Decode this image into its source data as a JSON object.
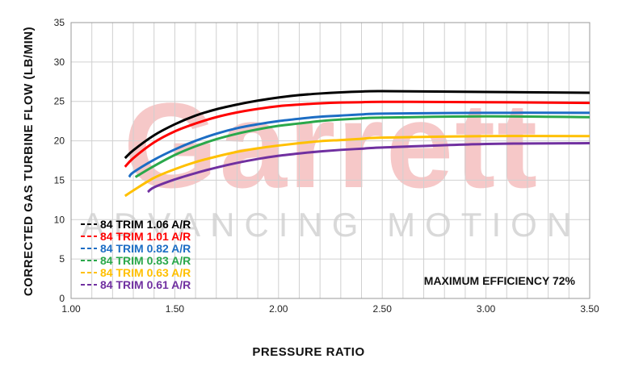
{
  "watermark": {
    "brand": "Garrett",
    "tagline": "ADVANCING MOTION",
    "brand_color": "#f5c4c4",
    "tagline_color": "#d9d9d9"
  },
  "chart_data": {
    "type": "line",
    "title": "",
    "xlabel": "PRESSURE RATIO",
    "ylabel": "CORRECTED GAS TURBINE FLOW (LB/MIN)",
    "xlim": [
      1.0,
      3.5
    ],
    "ylim": [
      0,
      35
    ],
    "x_ticks": [
      "1.00",
      "1.50",
      "2.00",
      "2.50",
      "3.00",
      "3.50"
    ],
    "y_ticks": [
      "0",
      "5",
      "10",
      "15",
      "20",
      "25",
      "30",
      "35"
    ],
    "grid": true,
    "legend_position": "bottom-left",
    "annotation": "MAXIMUM EFFICIENCY 72%",
    "series": [
      {
        "name": "84 TRIM 1.06 A/R",
        "color": "#000000",
        "points": [
          [
            1.26,
            17.8
          ],
          [
            1.3,
            18.8
          ],
          [
            1.4,
            20.7
          ],
          [
            1.5,
            22.1
          ],
          [
            1.6,
            23.2
          ],
          [
            1.7,
            24.0
          ],
          [
            1.8,
            24.6
          ],
          [
            1.9,
            25.1
          ],
          [
            2.0,
            25.5
          ],
          [
            2.1,
            25.8
          ],
          [
            2.2,
            26.0
          ],
          [
            2.3,
            26.15
          ],
          [
            2.4,
            26.25
          ],
          [
            2.5,
            26.3
          ],
          [
            3.0,
            26.2
          ],
          [
            3.5,
            26.1
          ]
        ]
      },
      {
        "name": "84 TRIM 1.01 A/R",
        "color": "#ff0000",
        "points": [
          [
            1.26,
            16.7
          ],
          [
            1.3,
            17.8
          ],
          [
            1.4,
            19.8
          ],
          [
            1.5,
            21.2
          ],
          [
            1.6,
            22.2
          ],
          [
            1.7,
            23.0
          ],
          [
            1.8,
            23.6
          ],
          [
            1.9,
            24.05
          ],
          [
            2.0,
            24.4
          ],
          [
            2.1,
            24.6
          ],
          [
            2.2,
            24.75
          ],
          [
            2.3,
            24.85
          ],
          [
            2.4,
            24.9
          ],
          [
            2.5,
            24.95
          ],
          [
            3.0,
            24.9
          ],
          [
            3.5,
            24.8
          ]
        ]
      },
      {
        "name": "84 TRIM 0.82 A/R",
        "color": "#1c6dc4",
        "points": [
          [
            1.28,
            15.4
          ],
          [
            1.3,
            16.0
          ],
          [
            1.4,
            17.6
          ],
          [
            1.5,
            18.9
          ],
          [
            1.6,
            20.0
          ],
          [
            1.7,
            20.9
          ],
          [
            1.8,
            21.6
          ],
          [
            1.9,
            22.1
          ],
          [
            2.0,
            22.5
          ],
          [
            2.1,
            22.8
          ],
          [
            2.2,
            23.05
          ],
          [
            2.3,
            23.2
          ],
          [
            2.4,
            23.35
          ],
          [
            2.5,
            23.45
          ],
          [
            3.0,
            23.55
          ],
          [
            3.5,
            23.55
          ]
        ]
      },
      {
        "name": "84 TRIM 0.83 A/R",
        "color": "#2aa84a",
        "points": [
          [
            1.31,
            15.4
          ],
          [
            1.4,
            16.8
          ],
          [
            1.5,
            18.2
          ],
          [
            1.6,
            19.3
          ],
          [
            1.7,
            20.2
          ],
          [
            1.8,
            20.9
          ],
          [
            1.9,
            21.45
          ],
          [
            2.0,
            21.9
          ],
          [
            2.1,
            22.2
          ],
          [
            2.2,
            22.5
          ],
          [
            2.3,
            22.7
          ],
          [
            2.4,
            22.85
          ],
          [
            2.5,
            22.95
          ],
          [
            3.0,
            23.1
          ],
          [
            3.5,
            23.0
          ]
        ]
      },
      {
        "name": "84 TRIM 0.63 A/R",
        "color": "#ffc000",
        "points": [
          [
            1.26,
            13.0
          ],
          [
            1.3,
            13.7
          ],
          [
            1.4,
            15.3
          ],
          [
            1.5,
            16.4
          ],
          [
            1.6,
            17.3
          ],
          [
            1.7,
            18.0
          ],
          [
            1.8,
            18.6
          ],
          [
            1.9,
            19.05
          ],
          [
            2.0,
            19.4
          ],
          [
            2.1,
            19.7
          ],
          [
            2.2,
            19.95
          ],
          [
            2.3,
            20.1
          ],
          [
            2.4,
            20.25
          ],
          [
            2.5,
            20.4
          ],
          [
            3.0,
            20.6
          ],
          [
            3.5,
            20.6
          ]
        ]
      },
      {
        "name": "84 TRIM 0.61 A/R",
        "color": "#7030a0",
        "points": [
          [
            1.37,
            13.5
          ],
          [
            1.4,
            14.1
          ],
          [
            1.5,
            15.1
          ],
          [
            1.6,
            15.9
          ],
          [
            1.7,
            16.6
          ],
          [
            1.8,
            17.2
          ],
          [
            1.9,
            17.7
          ],
          [
            2.0,
            18.1
          ],
          [
            2.1,
            18.4
          ],
          [
            2.2,
            18.65
          ],
          [
            2.3,
            18.85
          ],
          [
            2.4,
            19.0
          ],
          [
            2.5,
            19.15
          ],
          [
            3.0,
            19.6
          ],
          [
            3.5,
            19.7
          ]
        ]
      }
    ]
  }
}
